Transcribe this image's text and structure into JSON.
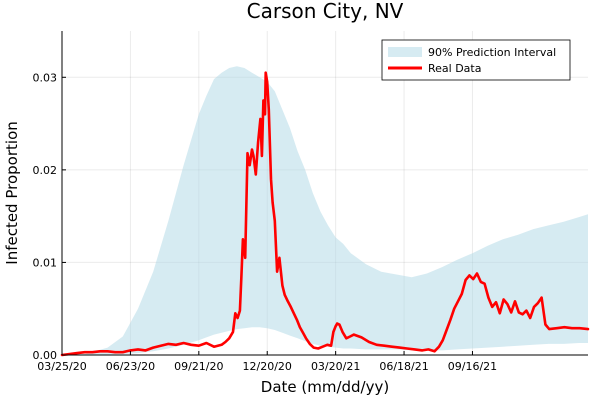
{
  "chart_data": {
    "type": "area",
    "title": "Carson City, NV",
    "xlabel": "Date (mm/dd/yy)",
    "ylabel": "Infected Proportion",
    "x_start": "03/25/20",
    "x_end": "02/15/22",
    "xlim": [
      "03/25/20",
      "02/15/22"
    ],
    "ylim": [
      0,
      0.035
    ],
    "x_ticks": [
      "03/25/20",
      "06/23/20",
      "09/21/20",
      "12/20/20",
      "03/20/21",
      "06/18/21",
      "09/16/21"
    ],
    "y_ticks": [
      0.0,
      0.01,
      0.02,
      0.03
    ],
    "y_tick_labels": [
      "0.00",
      "0.01",
      "0.02",
      "0.03"
    ],
    "grid": true,
    "legend_position": "top-right",
    "series": [
      {
        "name": "90% Prediction Interval",
        "kind": "band",
        "color": "#add8e6",
        "x": [
          "03/25/20",
          "04/24/20",
          "05/24/20",
          "06/13/20",
          "07/03/20",
          "07/23/20",
          "08/12/20",
          "09/01/20",
          "09/21/20",
          "10/01/20",
          "10/11/20",
          "10/21/20",
          "10/31/20",
          "11/10/20",
          "11/20/20",
          "11/30/20",
          "12/10/20",
          "12/20/20",
          "12/30/20",
          "01/09/21",
          "01/19/21",
          "01/29/21",
          "02/08/21",
          "02/18/21",
          "02/28/21",
          "03/10/21",
          "03/20/21",
          "03/30/21",
          "04/09/21",
          "04/29/21",
          "05/19/21",
          "06/08/21",
          "06/28/21",
          "07/18/21",
          "08/07/21",
          "08/27/21",
          "09/16/21",
          "10/06/21",
          "10/26/21",
          "11/15/21",
          "12/05/21",
          "12/25/21",
          "01/14/22",
          "02/03/22",
          "02/15/22"
        ],
        "lower": [
          0,
          0,
          5e-05,
          0.0001,
          0.0002,
          0.0004,
          0.0007,
          0.0011,
          0.0016,
          0.0019,
          0.0022,
          0.0024,
          0.0026,
          0.0028,
          0.0029,
          0.003,
          0.003,
          0.0029,
          0.0027,
          0.0024,
          0.0021,
          0.0018,
          0.0015,
          0.0012,
          0.001,
          0.0009,
          0.0008,
          0.0007,
          0.0007,
          0.0006,
          0.0006,
          0.0006,
          0.0005,
          0.0005,
          0.0005,
          0.0006,
          0.0007,
          0.0008,
          0.0009,
          0.001,
          0.0011,
          0.0012,
          0.0012,
          0.0013,
          0.0013
        ],
        "upper": [
          0,
          0.0001,
          0.0008,
          0.002,
          0.005,
          0.009,
          0.0145,
          0.0205,
          0.026,
          0.028,
          0.0298,
          0.0305,
          0.031,
          0.0312,
          0.031,
          0.0305,
          0.03,
          0.0295,
          0.0285,
          0.0265,
          0.0245,
          0.022,
          0.02,
          0.0175,
          0.0155,
          0.014,
          0.0127,
          0.012,
          0.011,
          0.0098,
          0.009,
          0.0087,
          0.0084,
          0.0088,
          0.0095,
          0.0103,
          0.011,
          0.0118,
          0.0125,
          0.013,
          0.0136,
          0.014,
          0.0144,
          0.0149,
          0.0152
        ]
      },
      {
        "name": "Real Data",
        "kind": "line",
        "color": "#ff0000",
        "x": [
          "03/25/20",
          "04/04/20",
          "04/14/20",
          "04/24/20",
          "05/04/20",
          "05/14/20",
          "05/24/20",
          "06/03/20",
          "06/13/20",
          "06/23/20",
          "07/03/20",
          "07/13/20",
          "07/23/20",
          "08/02/20",
          "08/12/20",
          "08/22/20",
          "09/01/20",
          "09/11/20",
          "09/21/20",
          "10/01/20",
          "10/11/20",
          "10/21/20",
          "10/26/20",
          "10/31/20",
          "11/05/20",
          "11/08/20",
          "11/11/20",
          "11/14/20",
          "11/16/20",
          "11/18/20",
          "11/21/20",
          "11/24/20",
          "11/27/20",
          "11/30/20",
          "12/02/20",
          "12/05/20",
          "12/08/20",
          "12/11/20",
          "12/13/20",
          "12/15/20",
          "12/17/20",
          "12/18/20",
          "12/20/20",
          "12/22/20",
          "12/25/20",
          "12/27/20",
          "12/30/20",
          "01/02/21",
          "01/05/21",
          "01/09/21",
          "01/12/21",
          "01/16/21",
          "01/20/21",
          "01/24/21",
          "01/28/21",
          "02/01/21",
          "02/05/21",
          "02/09/21",
          "02/14/21",
          "02/19/21",
          "02/25/21",
          "03/03/21",
          "03/09/21",
          "03/14/21",
          "03/17/21",
          "03/20/21",
          "03/22/21",
          "03/25/21",
          "03/29/21",
          "04/03/21",
          "04/08/21",
          "04/13/21",
          "04/23/21",
          "05/03/21",
          "05/13/21",
          "05/23/21",
          "06/02/21",
          "06/12/21",
          "06/22/21",
          "07/02/21",
          "07/12/21",
          "07/20/21",
          "07/28/21",
          "08/03/21",
          "08/08/21",
          "08/13/21",
          "08/18/21",
          "08/23/21",
          "08/28/21",
          "09/02/21",
          "09/07/21",
          "09/12/21",
          "09/17/21",
          "09/22/21",
          "09/27/21",
          "10/02/21",
          "10/07/21",
          "10/12/21",
          "10/17/21",
          "10/22/21",
          "10/27/21",
          "11/01/21",
          "11/06/21",
          "11/11/21",
          "11/16/21",
          "11/21/21",
          "11/26/21",
          "12/01/21",
          "12/06/21",
          "12/11/21",
          "12/16/21",
          "12/21/21",
          "12/26/21",
          "01/05/22",
          "01/15/22",
          "01/25/22",
          "02/04/22",
          "02/15/22"
        ],
        "y": [
          0,
          0.0001,
          0.0002,
          0.0003,
          0.0003,
          0.0004,
          0.0004,
          0.0003,
          0.0003,
          0.0005,
          0.0006,
          0.0005,
          0.0008,
          0.001,
          0.0012,
          0.0011,
          0.0013,
          0.0011,
          0.001,
          0.0013,
          0.0009,
          0.0011,
          0.0014,
          0.0018,
          0.0025,
          0.0045,
          0.004,
          0.0048,
          0.0085,
          0.0125,
          0.0105,
          0.0218,
          0.0205,
          0.0222,
          0.0215,
          0.0195,
          0.023,
          0.0255,
          0.0215,
          0.0275,
          0.026,
          0.0305,
          0.0295,
          0.0265,
          0.019,
          0.0165,
          0.0145,
          0.009,
          0.0105,
          0.0075,
          0.0065,
          0.0058,
          0.0052,
          0.0045,
          0.0038,
          0.003,
          0.0024,
          0.0018,
          0.0012,
          0.0008,
          0.0007,
          0.0009,
          0.0011,
          0.001,
          0.0025,
          0.0031,
          0.0034,
          0.0033,
          0.0025,
          0.0018,
          0.002,
          0.0022,
          0.0019,
          0.0014,
          0.0011,
          0.001,
          0.0009,
          0.0008,
          0.0007,
          0.0006,
          0.0005,
          0.0006,
          0.0004,
          0.0009,
          0.0016,
          0.0027,
          0.0038,
          0.005,
          0.0058,
          0.0066,
          0.0081,
          0.0086,
          0.0082,
          0.0088,
          0.0079,
          0.0077,
          0.0062,
          0.0052,
          0.0057,
          0.0045,
          0.006,
          0.0055,
          0.0046,
          0.0058,
          0.0046,
          0.0044,
          0.0048,
          0.004,
          0.0052,
          0.0056,
          0.0062,
          0.0033,
          0.0028,
          0.0029,
          0.003,
          0.0029,
          0.0029,
          0.0028
        ]
      }
    ]
  }
}
